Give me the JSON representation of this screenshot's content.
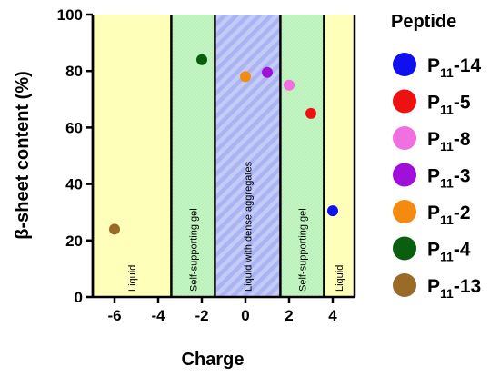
{
  "chart_data": {
    "type": "scatter",
    "xlabel": "Charge",
    "ylabel": "β-sheet content (%)",
    "xlim": [
      -7,
      5
    ],
    "ylim": [
      0,
      100
    ],
    "xticks": [
      -6,
      -4,
      -2,
      0,
      2,
      4
    ],
    "yticks": [
      0,
      20,
      40,
      60,
      80,
      100
    ],
    "grid": false,
    "legend_position": "right",
    "legend_title": "Peptide",
    "regions": [
      {
        "label": "Liquid",
        "x0": -7,
        "x1": -3.4,
        "color": "#ffffb3",
        "pattern": "dots"
      },
      {
        "label": "Self-supporting gel",
        "x0": -3.4,
        "x1": -1.4,
        "color": "#b8f2b8",
        "pattern": "dots"
      },
      {
        "label": "Liquid with dense aggregates",
        "x0": -1.4,
        "x1": 1.6,
        "color": "#aab4f2",
        "pattern": "stripes"
      },
      {
        "label": "Self-supporting gel",
        "x0": 1.6,
        "x1": 3.6,
        "color": "#b8f2b8",
        "pattern": "dots"
      },
      {
        "label": "Liquid",
        "x0": 3.6,
        "x1": 5,
        "color": "#ffffb3",
        "pattern": "dots"
      }
    ],
    "series": [
      {
        "name": "P11-14",
        "base": "P",
        "sub": "11",
        "suffix": "-14",
        "color": "#1010ee",
        "x": 4,
        "y": 30.5
      },
      {
        "name": "P11-5",
        "base": "P",
        "sub": "11",
        "suffix": "-5",
        "color": "#ee1111",
        "x": 3,
        "y": 65
      },
      {
        "name": "P11-8",
        "base": "P",
        "sub": "11",
        "suffix": "-8",
        "color": "#f070e0",
        "x": 2,
        "y": 75
      },
      {
        "name": "P11-3",
        "base": "P",
        "sub": "11",
        "suffix": "-3",
        "color": "#a010d8",
        "x": 1,
        "y": 79.5
      },
      {
        "name": "P11-2",
        "base": "P",
        "sub": "11",
        "suffix": "-2",
        "color": "#f58a10",
        "x": 0,
        "y": 78
      },
      {
        "name": "P11-4",
        "base": "P",
        "sub": "11",
        "suffix": "-4",
        "color": "#0a5e10",
        "x": -2,
        "y": 84
      },
      {
        "name": "P11-13",
        "base": "P",
        "sub": "11",
        "suffix": "-13",
        "color": "#9a6a28",
        "x": -6,
        "y": 24
      }
    ]
  }
}
